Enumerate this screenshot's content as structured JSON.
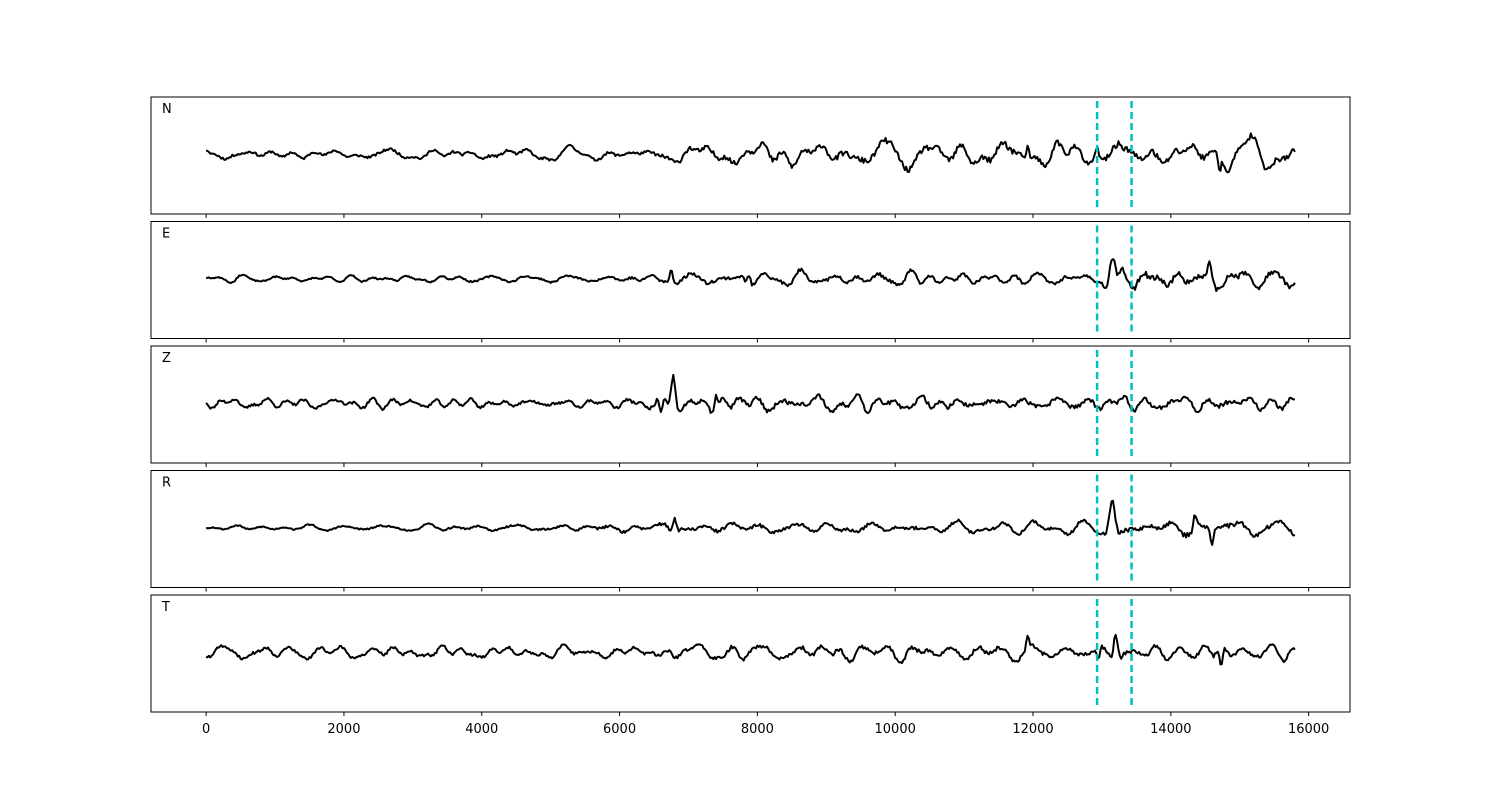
{
  "chart_data": {
    "type": "line",
    "title": "",
    "xlabel": "",
    "ylabel": "",
    "xlim": [
      -800,
      16600
    ],
    "x_ticks": [
      0,
      2000,
      4000,
      6000,
      8000,
      10000,
      12000,
      14000,
      16000
    ],
    "x_tick_labels": [
      "0",
      "2000",
      "4000",
      "6000",
      "8000",
      "10000",
      "12000",
      "14000",
      "16000"
    ],
    "n_samples": 15800,
    "x_range": [
      0,
      15800
    ],
    "grid": false,
    "line_color": "#000000",
    "pick_color": "#00bfbf",
    "picks": [
      12930,
      13430
    ],
    "panels": [
      {
        "label": "N",
        "seed": 11,
        "base_amp": 0.22,
        "envelope": [
          [
            0,
            0.9
          ],
          [
            6500,
            1.0
          ],
          [
            6600,
            1.9
          ],
          [
            9500,
            2.1
          ],
          [
            12000,
            2.3
          ],
          [
            12950,
            1.6
          ],
          [
            13150,
            2.6
          ],
          [
            15800,
            2.3
          ]
        ],
        "events": [
          [
            11920,
            2.4,
            55
          ],
          [
            12930,
            1.6,
            60
          ],
          [
            14700,
            -2.3,
            50
          ]
        ]
      },
      {
        "label": "E",
        "seed": 23,
        "base_amp": 0.22,
        "envelope": [
          [
            0,
            0.45
          ],
          [
            5800,
            0.6
          ],
          [
            6600,
            1.3
          ],
          [
            12500,
            1.1
          ],
          [
            12930,
            1.0
          ],
          [
            13100,
            2.0
          ],
          [
            15800,
            1.8
          ]
        ],
        "events": [
          [
            6750,
            2.0,
            60
          ],
          [
            7880,
            1.3,
            55
          ],
          [
            13150,
            4.5,
            90
          ],
          [
            14560,
            2.3,
            70
          ]
        ]
      },
      {
        "label": "Z",
        "seed": 37,
        "base_amp": 0.22,
        "envelope": [
          [
            0,
            1.0
          ],
          [
            6000,
            0.9
          ],
          [
            6600,
            1.5
          ],
          [
            7500,
            1.7
          ],
          [
            12000,
            1.4
          ],
          [
            13200,
            1.6
          ],
          [
            15800,
            1.5
          ]
        ],
        "events": [
          [
            6780,
            4.5,
            70
          ],
          [
            6600,
            -2.4,
            50
          ],
          [
            7400,
            2.0,
            55
          ]
        ]
      },
      {
        "label": "R",
        "seed": 53,
        "base_amp": 0.22,
        "envelope": [
          [
            0,
            0.5
          ],
          [
            5000,
            0.65
          ],
          [
            6500,
            1.3
          ],
          [
            12500,
            1.1
          ],
          [
            12930,
            0.9
          ],
          [
            13100,
            1.7
          ],
          [
            15800,
            1.8
          ]
        ],
        "events": [
          [
            6800,
            2.0,
            60
          ],
          [
            13150,
            4.4,
            90
          ],
          [
            14600,
            -2.3,
            60
          ],
          [
            14350,
            2.0,
            55
          ]
        ]
      },
      {
        "label": "T",
        "seed": 71,
        "base_amp": 0.22,
        "envelope": [
          [
            0,
            1.0
          ],
          [
            6500,
            1.0
          ],
          [
            7000,
            1.5
          ],
          [
            12000,
            1.6
          ],
          [
            12930,
            1.2
          ],
          [
            13300,
            1.4
          ],
          [
            15800,
            1.5
          ]
        ],
        "events": [
          [
            13200,
            3.8,
            70
          ],
          [
            12950,
            -2.0,
            50
          ],
          [
            14730,
            -2.8,
            55
          ],
          [
            11920,
            1.8,
            50
          ]
        ]
      }
    ]
  }
}
